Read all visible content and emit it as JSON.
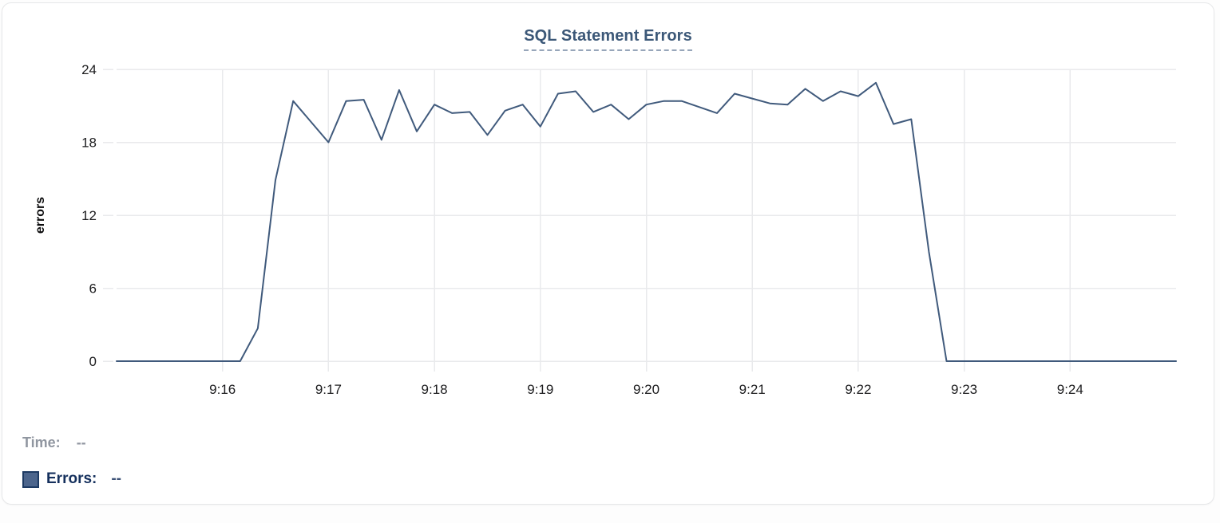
{
  "chart": {
    "title": "SQL Statement Errors",
    "y_axis_title": "errors"
  },
  "legend": {
    "time_label": "Time:",
    "time_value": "--",
    "errors_label": "Errors:",
    "errors_value": "--"
  },
  "colors": {
    "line": "#405a7c",
    "grid": "#e9eaec",
    "tick_text": "#1c1c1e",
    "title": "#3c5878",
    "title_underline": "#97a6ba",
    "legend_swatch": "#4c658c",
    "legend_swatch_border": "#1d3a63",
    "time_text": "#9096a0",
    "errors_text": "#15305d"
  },
  "chart_data": {
    "type": "line",
    "title": "SQL Statement Errors",
    "xlabel": "",
    "ylabel": "errors",
    "ylim": [
      0,
      24
    ],
    "y_ticks": [
      0,
      6,
      12,
      18,
      24
    ],
    "x_tick_labels": [
      "9:16",
      "9:17",
      "9:18",
      "9:19",
      "9:20",
      "9:21",
      "9:22",
      "9:23",
      "9:24"
    ],
    "start_time": "9:15:00",
    "interval_seconds": 10,
    "grid": true,
    "legend_position": "bottom-left",
    "series": [
      {
        "name": "Errors",
        "values": [
          0,
          0,
          0,
          0,
          0,
          0,
          0,
          0,
          2.7,
          14.9,
          21.4,
          19.7,
          18,
          21.4,
          21.5,
          18.2,
          22.3,
          18.9,
          21.1,
          20.4,
          20.5,
          18.6,
          20.6,
          21.1,
          19.3,
          22,
          22.2,
          20.5,
          21.1,
          19.9,
          21.1,
          21.4,
          21.4,
          20.9,
          20.4,
          22,
          21.6,
          21.2,
          21.1,
          22.4,
          21.4,
          22.2,
          21.8,
          22.9,
          19.5,
          19.9,
          9,
          0,
          0,
          0,
          0,
          0,
          0,
          0,
          0,
          0,
          0,
          0,
          0,
          0,
          0
        ]
      }
    ]
  }
}
